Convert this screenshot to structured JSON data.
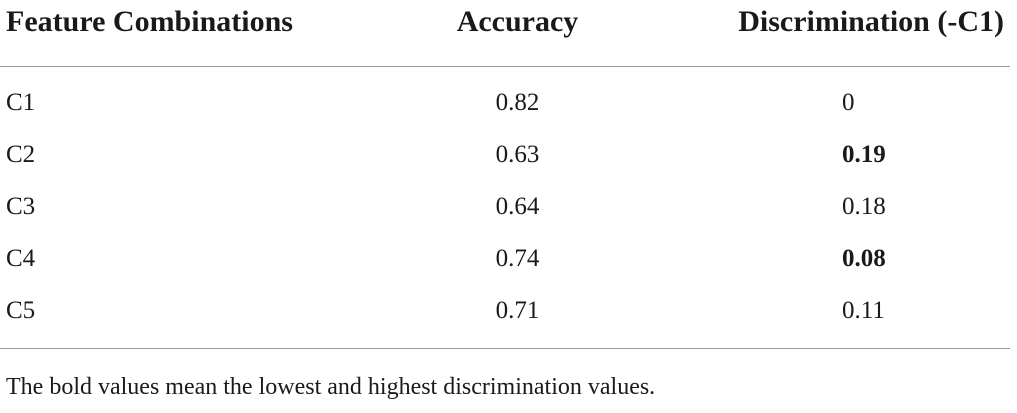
{
  "table": {
    "headers": [
      "Feature Combinations",
      "Accuracy",
      "Discrimination (-C1)"
    ],
    "rows": [
      {
        "combination": "C1",
        "accuracy": "0.82",
        "discrimination": "0",
        "discrimination_bold": false
      },
      {
        "combination": "C2",
        "accuracy": "0.63",
        "discrimination": "0.19",
        "discrimination_bold": true
      },
      {
        "combination": "C3",
        "accuracy": "0.64",
        "discrimination": "0.18",
        "discrimination_bold": false
      },
      {
        "combination": "C4",
        "accuracy": "0.74",
        "discrimination": "0.08",
        "discrimination_bold": true
      },
      {
        "combination": "C5",
        "accuracy": "0.71",
        "discrimination": "0.11",
        "discrimination_bold": false
      }
    ]
  },
  "footnote": "The bold values mean the lowest and highest discrimination values."
}
